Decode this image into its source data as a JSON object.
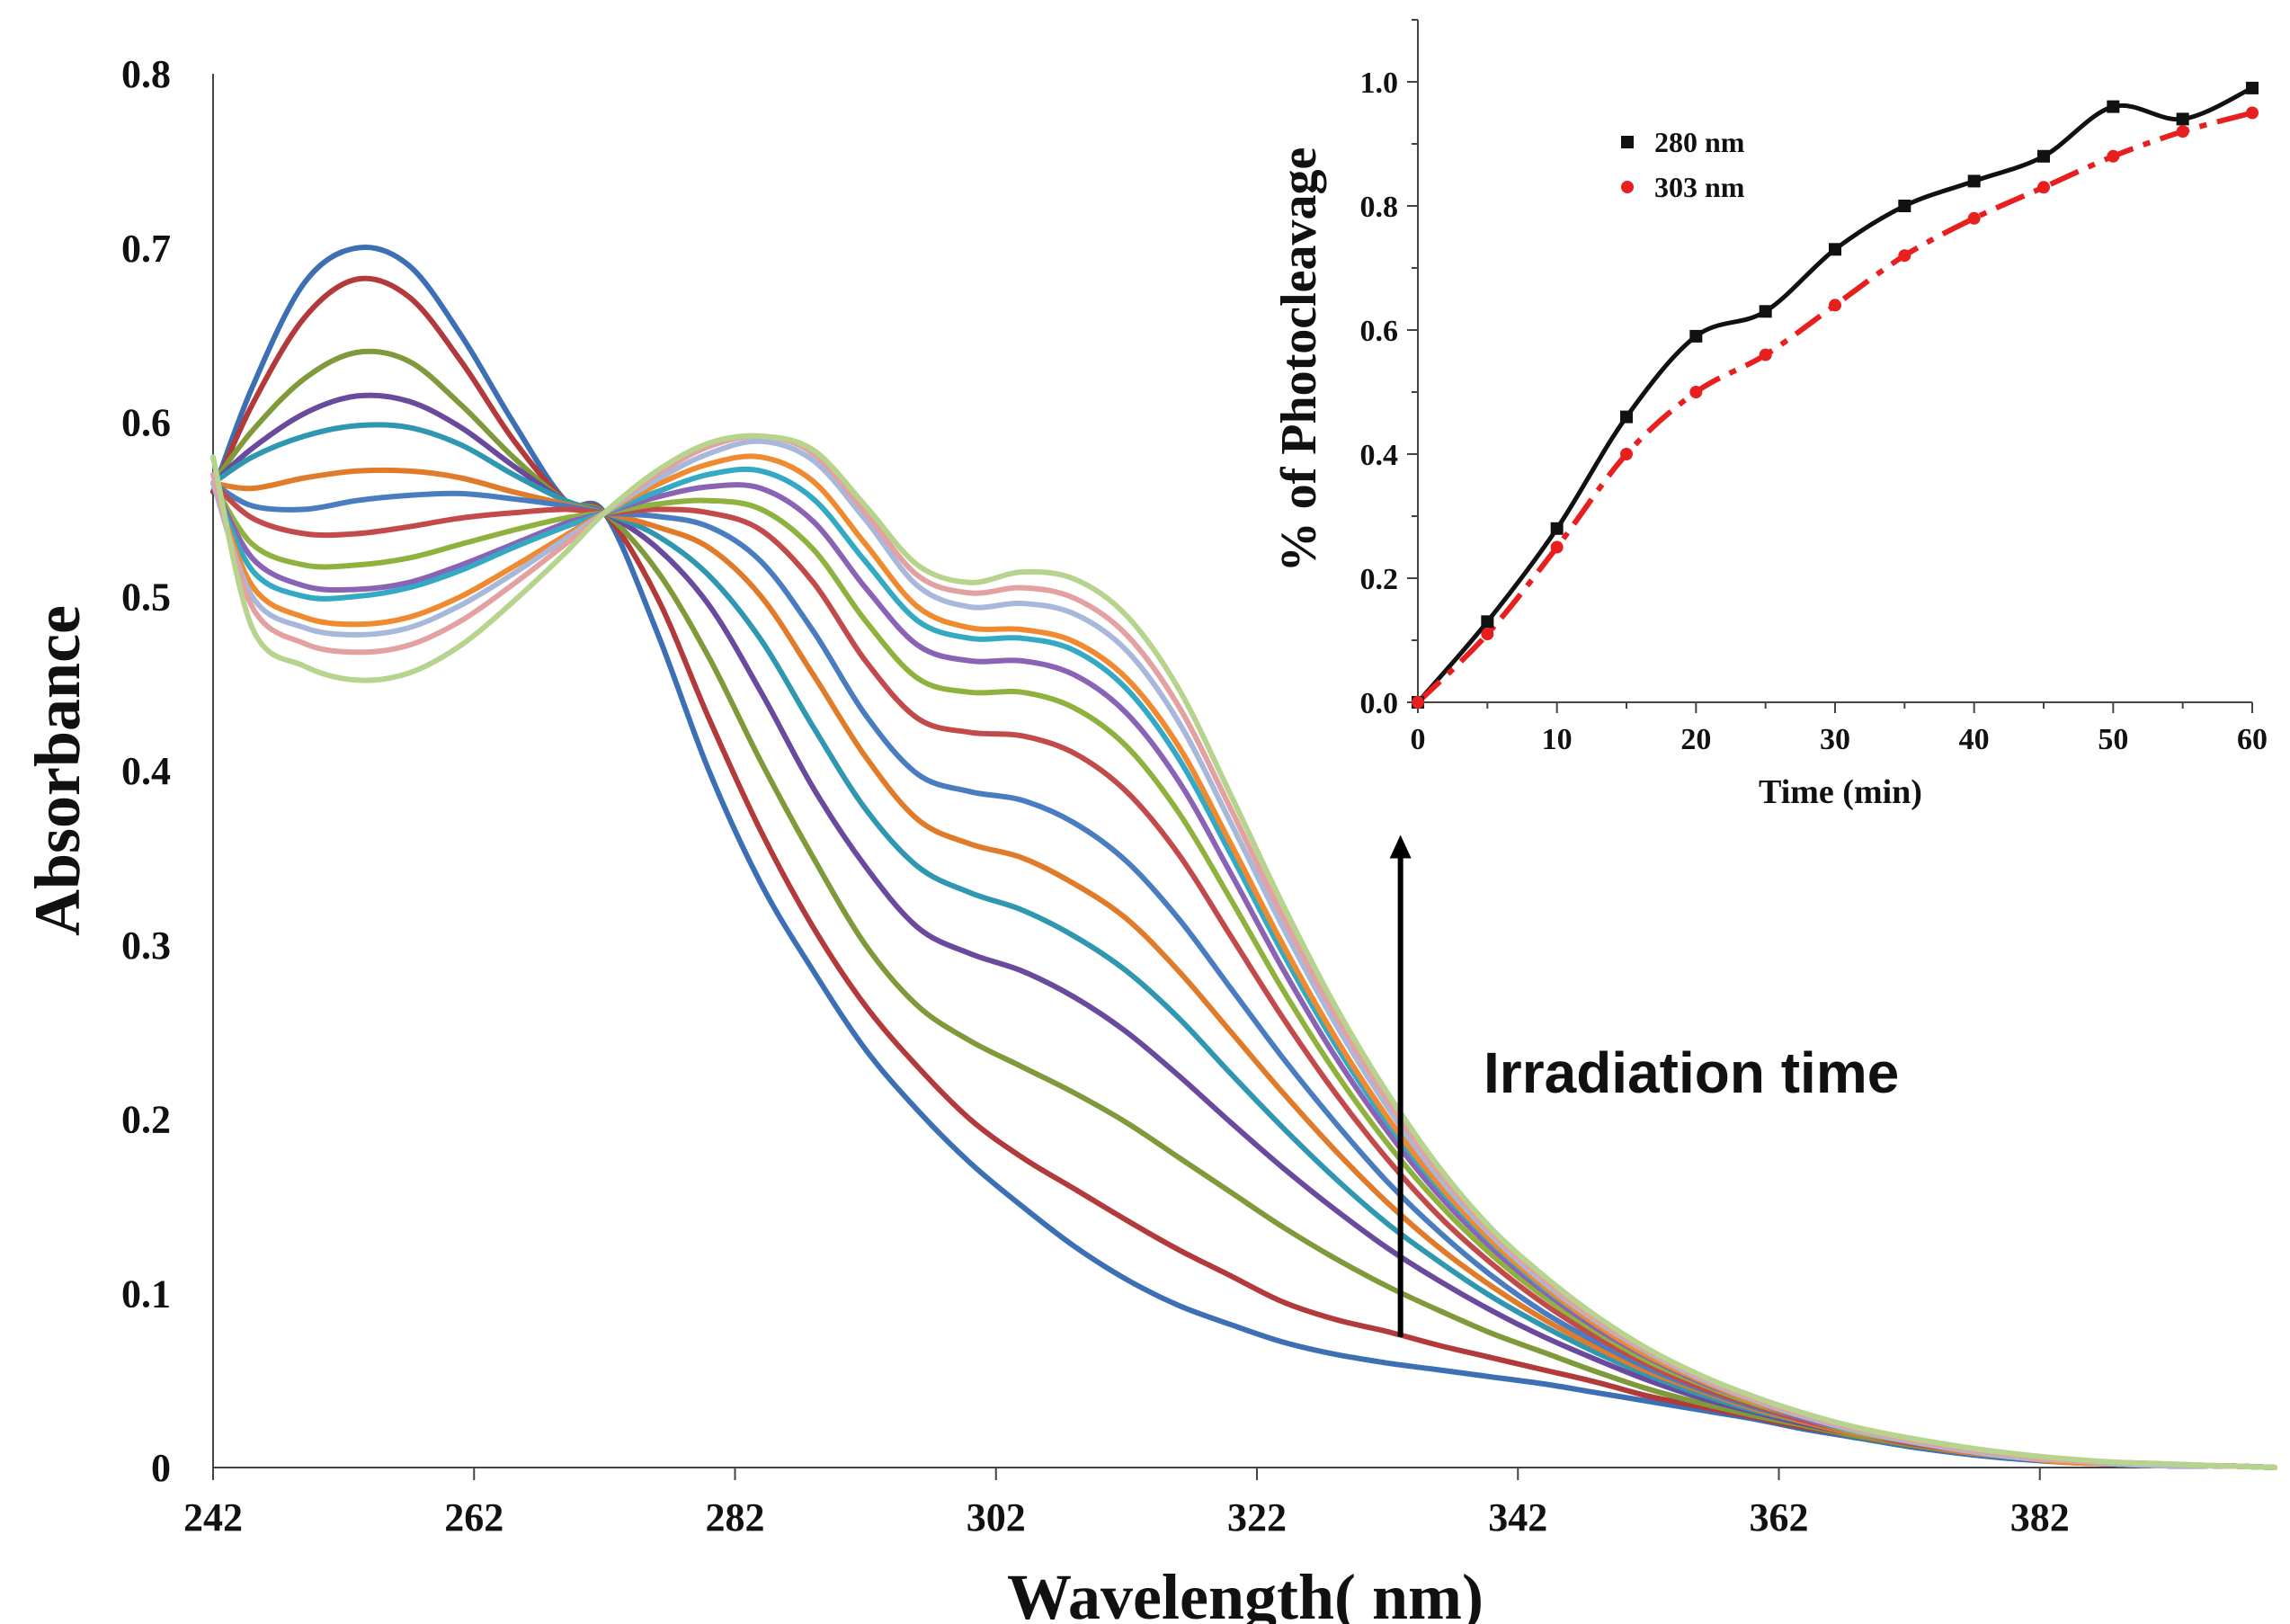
{
  "chart_data": [
    {
      "type": "line",
      "title": "",
      "xlabel": "Wavelength( nm)",
      "ylabel": "Absorbance",
      "xlim": [
        242,
        400
      ],
      "ylim": [
        0,
        0.8
      ],
      "x_ticks": [
        242,
        262,
        282,
        302,
        322,
        342,
        362,
        382
      ],
      "x_tick_labels": [
        "242",
        "262",
        "282",
        "302",
        "322",
        "342",
        "362",
        "382"
      ],
      "y_ticks": [
        0,
        0.1,
        0.2,
        0.3,
        0.4,
        0.5,
        0.6,
        0.7,
        0.8
      ],
      "y_tick_labels": [
        "0",
        "0.1",
        "0.2",
        "0.3",
        "0.4",
        "0.5",
        "0.6",
        "0.7",
        "0.8"
      ],
      "grid": false,
      "annotation": {
        "text": "Irradiation time",
        "direction": "up",
        "arrow_x": 333,
        "arrow_from": 0.075,
        "arrow_to": 0.36
      },
      "x": [
        242,
        245,
        249,
        253,
        257,
        261,
        265,
        269,
        272,
        276,
        280,
        284,
        288,
        292,
        296,
        300,
        304,
        308,
        312,
        316,
        320,
        324,
        328,
        332,
        336,
        340,
        344,
        348,
        352,
        356,
        360,
        364,
        368,
        372,
        376,
        380,
        384,
        388,
        392,
        396,
        400
      ],
      "series": [
        {
          "color": "#3c6fb4",
          "values": [
            0.56,
            0.62,
            0.68,
            0.7,
            0.69,
            0.65,
            0.6,
            0.555,
            0.548,
            0.48,
            0.4,
            0.335,
            0.285,
            0.24,
            0.205,
            0.175,
            0.15,
            0.127,
            0.108,
            0.093,
            0.082,
            0.072,
            0.065,
            0.06,
            0.056,
            0.052,
            0.048,
            0.043,
            0.038,
            0.033,
            0.028,
            0.022,
            0.017,
            0.012,
            0.008,
            0.005,
            0.003,
            0.002,
            0.001,
            0.001,
            0.0
          ]
        },
        {
          "color": "#b23a3a",
          "values": [
            0.56,
            0.61,
            0.66,
            0.682,
            0.672,
            0.635,
            0.59,
            0.555,
            0.548,
            0.5,
            0.43,
            0.365,
            0.31,
            0.265,
            0.23,
            0.2,
            0.178,
            0.16,
            0.142,
            0.125,
            0.11,
            0.095,
            0.085,
            0.078,
            0.07,
            0.063,
            0.056,
            0.049,
            0.041,
            0.035,
            0.029,
            0.023,
            0.018,
            0.013,
            0.009,
            0.006,
            0.004,
            0.002,
            0.001,
            0.001,
            0.0
          ]
        },
        {
          "color": "#7f9a3a",
          "values": [
            0.565,
            0.595,
            0.625,
            0.64,
            0.635,
            0.61,
            0.58,
            0.555,
            0.548,
            0.515,
            0.465,
            0.405,
            0.35,
            0.3,
            0.265,
            0.245,
            0.23,
            0.215,
            0.198,
            0.178,
            0.158,
            0.138,
            0.12,
            0.104,
            0.09,
            0.077,
            0.066,
            0.055,
            0.045,
            0.037,
            0.03,
            0.024,
            0.018,
            0.013,
            0.009,
            0.006,
            0.004,
            0.002,
            0.001,
            0.001,
            0.0
          ]
        },
        {
          "color": "#6a4a9c",
          "values": [
            0.565,
            0.585,
            0.605,
            0.615,
            0.612,
            0.597,
            0.575,
            0.555,
            0.548,
            0.528,
            0.495,
            0.445,
            0.39,
            0.345,
            0.31,
            0.295,
            0.285,
            0.27,
            0.25,
            0.225,
            0.198,
            0.172,
            0.148,
            0.126,
            0.107,
            0.09,
            0.075,
            0.062,
            0.05,
            0.04,
            0.032,
            0.025,
            0.019,
            0.014,
            0.01,
            0.006,
            0.004,
            0.002,
            0.001,
            0.001,
            0.0
          ]
        },
        {
          "color": "#2f97b0",
          "values": [
            0.565,
            0.58,
            0.592,
            0.598,
            0.597,
            0.587,
            0.57,
            0.555,
            0.548,
            0.535,
            0.512,
            0.475,
            0.425,
            0.378,
            0.345,
            0.33,
            0.32,
            0.305,
            0.285,
            0.258,
            0.226,
            0.195,
            0.166,
            0.14,
            0.118,
            0.098,
            0.081,
            0.066,
            0.053,
            0.042,
            0.033,
            0.026,
            0.019,
            0.014,
            0.01,
            0.006,
            0.004,
            0.002,
            0.001,
            0.001,
            0.0
          ]
        },
        {
          "color": "#e07b2a",
          "values": [
            0.565,
            0.562,
            0.568,
            0.572,
            0.572,
            0.568,
            0.56,
            0.553,
            0.548,
            0.54,
            0.528,
            0.5,
            0.455,
            0.408,
            0.372,
            0.358,
            0.35,
            0.335,
            0.315,
            0.285,
            0.25,
            0.215,
            0.182,
            0.152,
            0.126,
            0.104,
            0.085,
            0.069,
            0.055,
            0.044,
            0.034,
            0.026,
            0.019,
            0.014,
            0.009,
            0.006,
            0.003,
            0.002,
            0.001,
            0.001,
            0.0
          ]
        },
        {
          "color": "#4a7cc0",
          "values": [
            0.565,
            0.552,
            0.55,
            0.555,
            0.558,
            0.559,
            0.556,
            0.552,
            0.548,
            0.546,
            0.54,
            0.52,
            0.48,
            0.432,
            0.398,
            0.388,
            0.383,
            0.37,
            0.348,
            0.315,
            0.275,
            0.235,
            0.198,
            0.164,
            0.135,
            0.11,
            0.089,
            0.072,
            0.057,
            0.045,
            0.035,
            0.027,
            0.02,
            0.014,
            0.01,
            0.006,
            0.004,
            0.002,
            0.001,
            0.001,
            0.0
          ]
        },
        {
          "color": "#c24a4a",
          "values": [
            0.565,
            0.545,
            0.536,
            0.536,
            0.54,
            0.545,
            0.548,
            0.55,
            0.548,
            0.55,
            0.548,
            0.538,
            0.508,
            0.463,
            0.43,
            0.422,
            0.42,
            0.41,
            0.388,
            0.352,
            0.305,
            0.258,
            0.215,
            0.177,
            0.144,
            0.117,
            0.094,
            0.075,
            0.059,
            0.046,
            0.036,
            0.027,
            0.02,
            0.014,
            0.01,
            0.006,
            0.004,
            0.002,
            0.001,
            0.001,
            0.0
          ]
        },
        {
          "color": "#8fb23e",
          "values": [
            0.565,
            0.53,
            0.518,
            0.518,
            0.522,
            0.53,
            0.538,
            0.545,
            0.548,
            0.553,
            0.555,
            0.55,
            0.527,
            0.486,
            0.453,
            0.445,
            0.445,
            0.436,
            0.414,
            0.376,
            0.326,
            0.274,
            0.227,
            0.186,
            0.151,
            0.122,
            0.098,
            0.078,
            0.061,
            0.048,
            0.037,
            0.028,
            0.02,
            0.015,
            0.01,
            0.006,
            0.004,
            0.002,
            0.001,
            0.001,
            0.0
          ]
        },
        {
          "color": "#8a63b5",
          "values": [
            0.565,
            0.522,
            0.506,
            0.504,
            0.508,
            0.518,
            0.53,
            0.542,
            0.548,
            0.557,
            0.563,
            0.562,
            0.543,
            0.505,
            0.472,
            0.463,
            0.463,
            0.455,
            0.433,
            0.394,
            0.341,
            0.286,
            0.236,
            0.193,
            0.156,
            0.126,
            0.101,
            0.08,
            0.063,
            0.049,
            0.038,
            0.028,
            0.021,
            0.015,
            0.01,
            0.006,
            0.004,
            0.002,
            0.001,
            0.001,
            0.0
          ]
        },
        {
          "color": "#33a9c4",
          "values": [
            0.565,
            0.515,
            0.5,
            0.5,
            0.505,
            0.515,
            0.528,
            0.54,
            0.548,
            0.56,
            0.57,
            0.572,
            0.556,
            0.52,
            0.486,
            0.476,
            0.476,
            0.469,
            0.447,
            0.407,
            0.352,
            0.295,
            0.243,
            0.198,
            0.16,
            0.129,
            0.103,
            0.082,
            0.064,
            0.05,
            0.038,
            0.029,
            0.021,
            0.015,
            0.01,
            0.006,
            0.004,
            0.002,
            0.001,
            0.001,
            0.0
          ]
        },
        {
          "color": "#f08a30",
          "values": [
            0.565,
            0.506,
            0.488,
            0.484,
            0.488,
            0.5,
            0.517,
            0.535,
            0.548,
            0.564,
            0.576,
            0.58,
            0.566,
            0.53,
            0.494,
            0.482,
            0.481,
            0.474,
            0.453,
            0.414,
            0.358,
            0.3,
            0.247,
            0.201,
            0.162,
            0.13,
            0.104,
            0.082,
            0.064,
            0.05,
            0.038,
            0.029,
            0.021,
            0.015,
            0.01,
            0.006,
            0.003,
            0.002,
            0.001,
            0.001,
            0.0
          ]
        },
        {
          "color": "#a7b8db",
          "values": [
            0.565,
            0.5,
            0.482,
            0.478,
            0.482,
            0.495,
            0.513,
            0.533,
            0.548,
            0.567,
            0.582,
            0.589,
            0.578,
            0.544,
            0.506,
            0.494,
            0.496,
            0.49,
            0.469,
            0.428,
            0.37,
            0.31,
            0.255,
            0.207,
            0.166,
            0.133,
            0.106,
            0.084,
            0.066,
            0.051,
            0.039,
            0.029,
            0.021,
            0.015,
            0.01,
            0.006,
            0.004,
            0.002,
            0.001,
            0.001,
            0.0
          ]
        },
        {
          "color": "#e3a1a1",
          "values": [
            0.57,
            0.494,
            0.473,
            0.468,
            0.472,
            0.486,
            0.507,
            0.53,
            0.548,
            0.57,
            0.586,
            0.592,
            0.582,
            0.548,
            0.512,
            0.502,
            0.505,
            0.499,
            0.478,
            0.437,
            0.378,
            0.316,
            0.26,
            0.211,
            0.169,
            0.135,
            0.108,
            0.085,
            0.067,
            0.052,
            0.04,
            0.03,
            0.022,
            0.016,
            0.011,
            0.007,
            0.004,
            0.003,
            0.002,
            0.001,
            0.0
          ]
        },
        {
          "color": "#b7d48e",
          "values": [
            0.58,
            0.482,
            0.46,
            0.452,
            0.456,
            0.472,
            0.497,
            0.525,
            0.548,
            0.572,
            0.588,
            0.592,
            0.584,
            0.552,
            0.518,
            0.508,
            0.514,
            0.51,
            0.489,
            0.447,
            0.386,
            0.323,
            0.265,
            0.215,
            0.172,
            0.137,
            0.11,
            0.087,
            0.068,
            0.053,
            0.041,
            0.031,
            0.023,
            0.017,
            0.012,
            0.008,
            0.005,
            0.003,
            0.002,
            0.001,
            0.0
          ]
        }
      ]
    },
    {
      "type": "scatter",
      "title": "",
      "xlabel": "Time (min)",
      "ylabel": "% of Photocleavage",
      "xlim": [
        0,
        60
      ],
      "ylim": [
        0,
        1.1
      ],
      "x_ticks": [
        0,
        10,
        20,
        30,
        40,
        50,
        60
      ],
      "x_tick_labels": [
        "0",
        "10",
        "20",
        "30",
        "40",
        "50",
        "60"
      ],
      "y_ticks": [
        0.0,
        0.2,
        0.4,
        0.6,
        0.8,
        1.0
      ],
      "y_tick_labels": [
        "0.0",
        "0.2",
        "0.4",
        "0.6",
        "0.8",
        "1.0"
      ],
      "grid": false,
      "legend_position": "top-left",
      "x": [
        0,
        5,
        10,
        15,
        20,
        25,
        30,
        35,
        40,
        45,
        50,
        55,
        60
      ],
      "series": [
        {
          "name": "280 nm",
          "color": "#111111",
          "marker": "square",
          "fit": "solid",
          "values": [
            0.0,
            0.13,
            0.28,
            0.46,
            0.59,
            0.63,
            0.73,
            0.8,
            0.84,
            0.88,
            0.96,
            0.94,
            0.99
          ]
        },
        {
          "name": "303 nm",
          "color": "#e81f1f",
          "marker": "circle",
          "fit": "dashed",
          "values": [
            0.0,
            0.11,
            0.25,
            0.4,
            0.5,
            0.56,
            0.64,
            0.72,
            0.78,
            0.83,
            0.88,
            0.92,
            0.95
          ]
        }
      ]
    }
  ]
}
